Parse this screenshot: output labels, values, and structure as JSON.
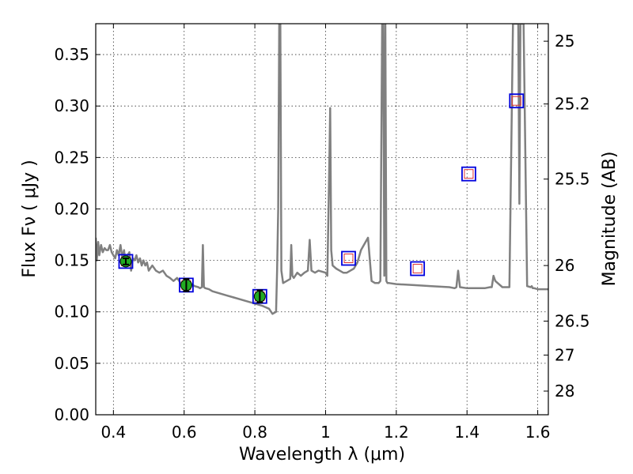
{
  "chart_data": {
    "type": "scatter",
    "title": "",
    "xlabel": "Wavelength  λ (μm)",
    "ylabel": "Flux  Fν  ( μJy )",
    "y2label": "Magnitude (AB)",
    "xlim": [
      0.35,
      1.63
    ],
    "ylim": [
      0.0,
      0.38
    ],
    "grid": true,
    "x_ticks": [
      0.4,
      0.6,
      0.8,
      1.0,
      1.2,
      1.4,
      1.6
    ],
    "x_tick_labels": [
      "0.4",
      "0.6",
      "0.8",
      "1",
      "1.2",
      "1.4",
      "1.6"
    ],
    "y_ticks": [
      0.0,
      0.05,
      0.1,
      0.15,
      0.2,
      0.25,
      0.3,
      0.35
    ],
    "y_tick_labels": [
      "0.00",
      "0.05",
      "0.10",
      "0.15",
      "0.20",
      "0.25",
      "0.30",
      "0.35"
    ],
    "y2_ticks": [
      {
        "label": "25",
        "flux": 0.363
      },
      {
        "label": "25.2",
        "flux": 0.302
      },
      {
        "label": "25.5",
        "flux": 0.229
      },
      {
        "label": "26",
        "flux": 0.145
      },
      {
        "label": "26.5",
        "flux": 0.091
      },
      {
        "label": "27",
        "flux": 0.058
      },
      {
        "label": "28",
        "flux": 0.023
      }
    ],
    "colors": {
      "spectrum": "#808080",
      "observed_fill": "#22aa22",
      "box_outer": "#0000dd",
      "box_inner": "#dd3333"
    },
    "series": [
      {
        "role": "model_spectrum",
        "x": [
          0.35,
          0.353,
          0.357,
          0.36,
          0.365,
          0.37,
          0.375,
          0.38,
          0.385,
          0.39,
          0.395,
          0.4,
          0.405,
          0.41,
          0.415,
          0.42,
          0.425,
          0.43,
          0.435,
          0.44,
          0.445,
          0.45,
          0.455,
          0.46,
          0.465,
          0.47,
          0.475,
          0.48,
          0.485,
          0.49,
          0.495,
          0.5,
          0.51,
          0.52,
          0.53,
          0.54,
          0.55,
          0.56,
          0.57,
          0.58,
          0.59,
          0.6,
          0.61,
          0.62,
          0.63,
          0.64,
          0.645,
          0.65,
          0.653,
          0.656,
          0.66,
          0.67,
          0.68,
          0.7,
          0.72,
          0.74,
          0.76,
          0.78,
          0.8,
          0.82,
          0.84,
          0.85,
          0.86,
          0.863,
          0.866,
          0.869,
          0.872,
          0.875,
          0.88,
          0.89,
          0.9,
          0.903,
          0.906,
          0.91,
          0.92,
          0.93,
          0.94,
          0.95,
          0.955,
          0.96,
          0.97,
          0.98,
          1.0,
          1.005,
          1.01,
          1.013,
          1.016,
          1.02,
          1.03,
          1.04,
          1.05,
          1.06,
          1.07,
          1.08,
          1.09,
          1.1,
          1.12,
          1.13,
          1.14,
          1.15,
          1.155,
          1.16,
          1.163,
          1.166,
          1.169,
          1.172,
          1.175,
          1.18,
          1.2,
          1.25,
          1.3,
          1.35,
          1.365,
          1.37,
          1.375,
          1.38,
          1.4,
          1.45,
          1.465,
          1.47,
          1.475,
          1.48,
          1.5,
          1.515,
          1.52,
          1.53,
          1.54,
          1.545,
          1.548,
          1.551,
          1.555,
          1.56,
          1.57,
          1.58,
          1.583,
          1.586,
          1.59,
          1.6,
          1.63
        ],
        "y": [
          0.172,
          0.15,
          0.168,
          0.155,
          0.165,
          0.158,
          0.162,
          0.16,
          0.16,
          0.165,
          0.158,
          0.155,
          0.152,
          0.16,
          0.155,
          0.165,
          0.153,
          0.16,
          0.145,
          0.155,
          0.158,
          0.14,
          0.152,
          0.15,
          0.155,
          0.148,
          0.152,
          0.145,
          0.15,
          0.145,
          0.148,
          0.14,
          0.145,
          0.14,
          0.138,
          0.14,
          0.135,
          0.133,
          0.13,
          0.133,
          0.128,
          0.127,
          0.126,
          0.127,
          0.125,
          0.124,
          0.123,
          0.124,
          0.165,
          0.124,
          0.123,
          0.122,
          0.12,
          0.118,
          0.116,
          0.114,
          0.112,
          0.11,
          0.108,
          0.106,
          0.103,
          0.098,
          0.1,
          0.14,
          0.2,
          0.38,
          0.38,
          0.14,
          0.128,
          0.13,
          0.132,
          0.165,
          0.135,
          0.133,
          0.138,
          0.135,
          0.138,
          0.14,
          0.17,
          0.14,
          0.138,
          0.14,
          0.138,
          0.135,
          0.23,
          0.298,
          0.16,
          0.145,
          0.142,
          0.14,
          0.138,
          0.138,
          0.14,
          0.142,
          0.148,
          0.16,
          0.172,
          0.13,
          0.128,
          0.128,
          0.13,
          0.38,
          0.38,
          0.135,
          0.38,
          0.13,
          0.128,
          0.128,
          0.127,
          0.126,
          0.125,
          0.124,
          0.123,
          0.124,
          0.14,
          0.124,
          0.123,
          0.123,
          0.124,
          0.124,
          0.135,
          0.13,
          0.124,
          0.124,
          0.124,
          0.38,
          0.38,
          0.38,
          0.205,
          0.38,
          0.38,
          0.38,
          0.125,
          0.124,
          0.125,
          0.123,
          0.123,
          0.122,
          0.122
        ]
      },
      {
        "role": "observed_photometry",
        "x": [
          0.435,
          0.606,
          0.814
        ],
        "y": [
          0.149,
          0.126,
          0.115
        ],
        "yerr": [
          0.003,
          0.006,
          0.006
        ]
      },
      {
        "role": "model_photometry",
        "x": [
          0.435,
          0.606,
          0.814,
          1.065,
          1.26,
          1.405,
          1.54
        ],
        "y": [
          0.149,
          0.126,
          0.115,
          0.152,
          0.142,
          0.234,
          0.305
        ]
      }
    ]
  }
}
